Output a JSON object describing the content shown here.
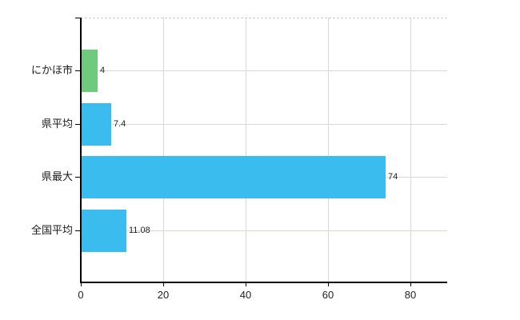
{
  "chart_data": {
    "type": "bar",
    "orientation": "horizontal",
    "title": "",
    "xlabel": "",
    "ylabel": "",
    "categories": [
      "にかほ市",
      "県平均",
      "県最大",
      "全国平均"
    ],
    "values": [
      4,
      7.4,
      74,
      11.08
    ],
    "value_labels": [
      "4",
      "7.4",
      "74",
      "11.08"
    ],
    "bar_colors": [
      "#6FCA7D",
      "#3ABCEE",
      "#3ABCEE",
      "#3ABCEE"
    ],
    "x_ticks": [
      0,
      20,
      40,
      60,
      80
    ],
    "x_tick_labels": [
      "0",
      "20",
      "40",
      "60",
      "80"
    ],
    "xlim": [
      0,
      88.9
    ],
    "grid": true,
    "legend": "none",
    "colors": {
      "background": "#FFFFFF",
      "axis": "#000000",
      "grid_vertical": "#D9D9D9",
      "grid_horizontal": "#D3DBD3",
      "plot_top_border": "#C9CCC9",
      "value_label": "#222222",
      "tick_label": "#222222",
      "category_label": "#1a1a1a"
    }
  }
}
